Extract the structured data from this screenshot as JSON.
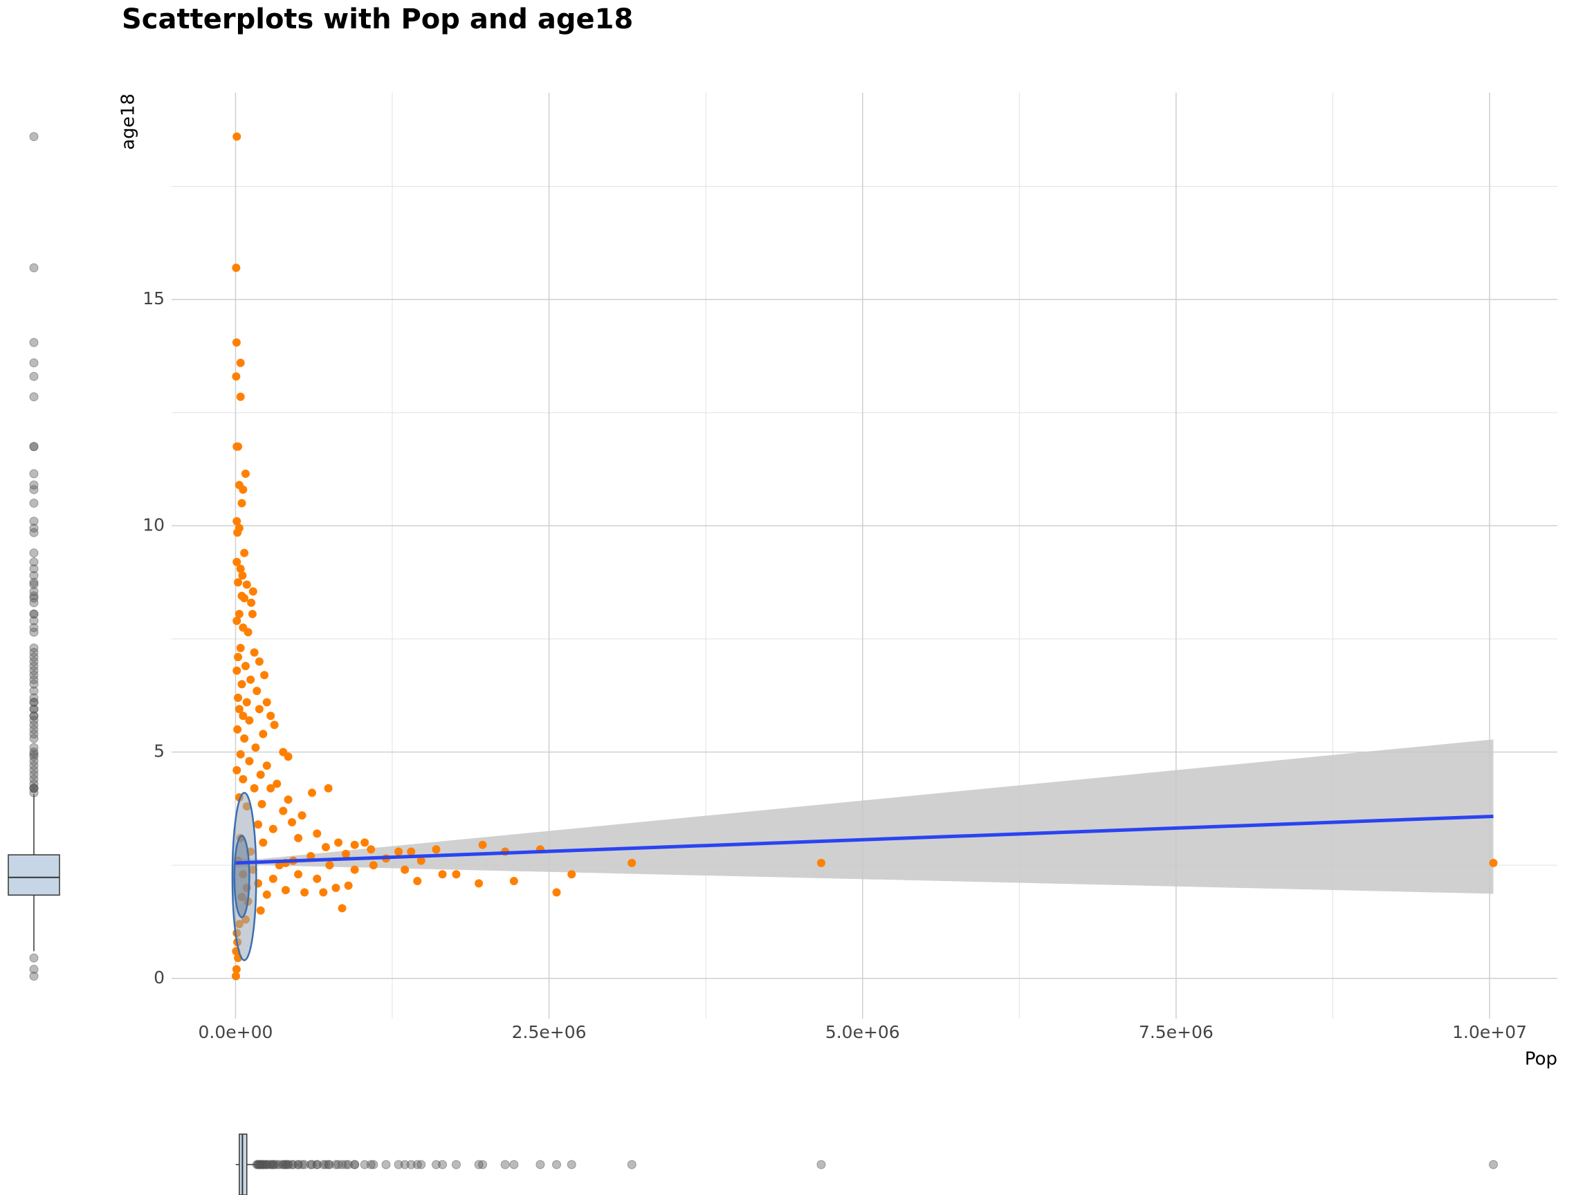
{
  "chart_data": {
    "type": "scatter",
    "title": "Scatterplots with Pop and age18",
    "x_label": "Pop",
    "y_label": "age18",
    "color": "#ff8000",
    "x": [
      10000,
      5000,
      8000,
      40000,
      5000,
      40000,
      10000,
      20000,
      80000,
      30000,
      60000,
      50000,
      10000,
      30000,
      15000,
      70000,
      10000,
      40000,
      55000,
      20000,
      90000,
      140000,
      50000,
      70000,
      125000,
      30000,
      135000,
      10000,
      60000,
      100000,
      40000,
      150000,
      20000,
      190000,
      80000,
      10000,
      230000,
      120000,
      50000,
      170000,
      20000,
      90000,
      250000,
      30000,
      190000,
      60000,
      280000,
      110000,
      310000,
      15000,
      220000,
      70000,
      380000,
      160000,
      40000,
      420000,
      110000,
      250000,
      10000,
      200000,
      60000,
      330000,
      150000,
      280000,
      740000,
      610000,
      30000,
      420000,
      210000,
      90000,
      380000,
      530000,
      450000,
      180000,
      300000,
      650000,
      40000,
      500000,
      820000,
      950000,
      1030000,
      220000,
      720000,
      1080000,
      1300000,
      1400000,
      1600000,
      1970000,
      2150000,
      2430000,
      120000,
      600000,
      880000,
      1200000,
      1480000,
      3160000,
      4670000,
      10030000,
      20000,
      400000,
      750000,
      1100000,
      1350000,
      1650000,
      1760000,
      1450000,
      1940000,
      2220000,
      2680000,
      2560000,
      850000,
      500000,
      650000,
      300000,
      180000,
      800000,
      400000,
      550000,
      700000,
      900000,
      250000,
      100000,
      200000,
      50000,
      80000,
      30000,
      10000,
      15000,
      5000,
      20000,
      8000,
      3000,
      60000,
      90000,
      140000,
      350000,
      460000,
      950000
    ],
    "values": [
      18.6,
      15.7,
      14.05,
      13.6,
      13.3,
      12.85,
      11.75,
      11.75,
      11.15,
      10.9,
      10.8,
      10.5,
      10.1,
      9.95,
      9.85,
      9.4,
      9.2,
      9.05,
      8.9,
      8.75,
      8.7,
      8.55,
      8.45,
      8.4,
      8.3,
      8.05,
      8.05,
      7.9,
      7.75,
      7.65,
      7.3,
      7.2,
      7.1,
      7.0,
      6.9,
      6.8,
      6.7,
      6.6,
      6.5,
      6.35,
      6.2,
      6.1,
      6.1,
      5.95,
      5.95,
      5.8,
      5.8,
      5.7,
      5.6,
      5.5,
      5.4,
      5.3,
      5.0,
      5.1,
      4.95,
      4.9,
      4.8,
      4.7,
      4.6,
      4.5,
      4.4,
      4.3,
      4.2,
      4.2,
      4.2,
      4.1,
      4.0,
      3.95,
      3.85,
      3.8,
      3.7,
      3.6,
      3.45,
      3.4,
      3.3,
      3.2,
      3.1,
      3.1,
      3.0,
      2.95,
      3.0,
      3.0,
      2.9,
      2.85,
      2.8,
      2.8,
      2.85,
      2.95,
      2.8,
      2.85,
      2.8,
      2.7,
      2.75,
      2.65,
      2.6,
      2.55,
      2.55,
      2.55,
      2.6,
      2.55,
      2.5,
      2.5,
      2.4,
      2.3,
      2.3,
      2.15,
      2.1,
      2.15,
      2.3,
      1.9,
      1.55,
      2.3,
      2.2,
      2.2,
      2.1,
      2.0,
      1.95,
      1.9,
      1.9,
      2.05,
      1.85,
      1.7,
      1.5,
      1.8,
      1.3,
      1.2,
      1.0,
      0.8,
      0.6,
      0.45,
      0.2,
      0.05,
      2.3,
      2.0,
      2.4,
      2.5,
      2.6,
      2.4
    ],
    "xlim": [
      -510000,
      10540000
    ],
    "ylim": [
      -0.89,
      19.57
    ],
    "xticks": [
      {
        "value": 0,
        "label": "0.0e+00"
      },
      {
        "value": 2500000,
        "label": "2.5e+06"
      },
      {
        "value": 5000000,
        "label": "5.0e+06"
      },
      {
        "value": 7500000,
        "label": "7.5e+06"
      },
      {
        "value": 10000000,
        "label": "1.0e+07"
      }
    ],
    "yticks": [
      0,
      5,
      10,
      15
    ],
    "x_minor_ticks": [
      1250000,
      3750000,
      6250000,
      8750000
    ],
    "y_minor_ticks": [
      2.5,
      7.5,
      12.5,
      17.5
    ],
    "grid": true,
    "fit": {
      "color": "#2a44f0",
      "band_color": "#c8c8c8",
      "x": [
        0,
        200000,
        10030000
      ],
      "values": [
        2.55,
        2.57,
        3.58
      ],
      "lower": [
        2.45,
        2.5,
        1.87
      ],
      "upper": [
        2.65,
        2.64,
        5.28
      ]
    },
    "ellipses": [
      {
        "cx": 70000,
        "cy": 2.25,
        "rx": 95000,
        "ry": 1.85
      },
      {
        "cx": 50000,
        "cy": 2.25,
        "rx": 60000,
        "ry": 0.9
      }
    ],
    "y_box": {
      "low": 0.6,
      "q1": 1.84,
      "median": 2.23,
      "q3": 2.73,
      "high": 4.07
    },
    "x_box": {
      "low": 2000,
      "q1": 30000,
      "median": 55000,
      "q3": 90000,
      "high": 160000
    },
    "box_color": "#c6d6e6"
  }
}
